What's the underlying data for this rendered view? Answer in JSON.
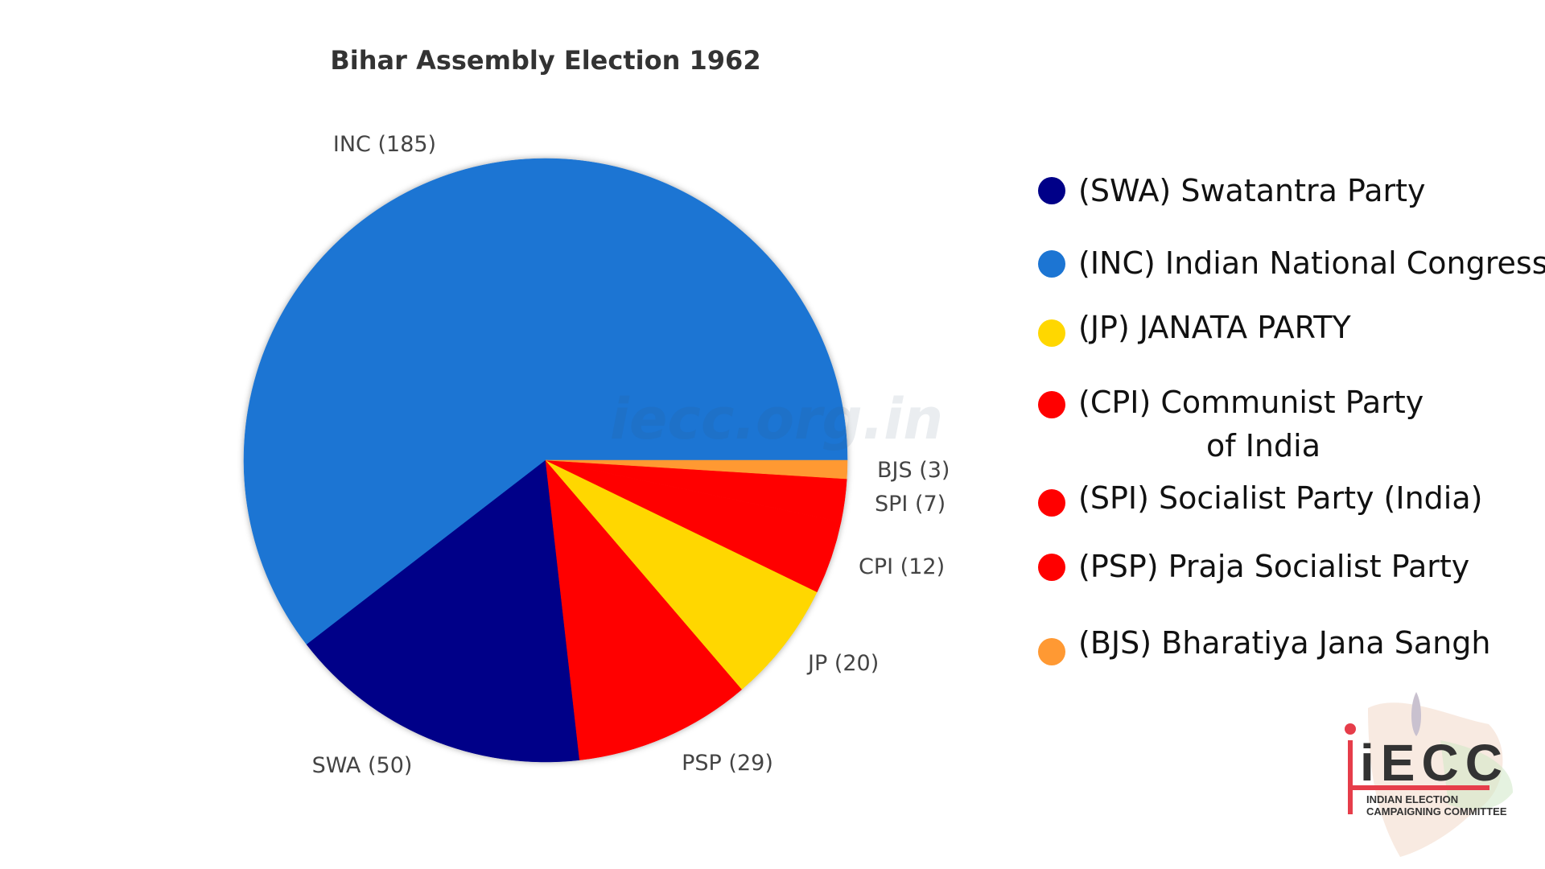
{
  "chart_data": {
    "type": "pie",
    "title": "Bihar Assembly Election 1962",
    "slices": [
      {
        "key": "INC",
        "value": 185,
        "label": "INC (185)",
        "color": "#1c75d3"
      },
      {
        "key": "SWA",
        "value": 50,
        "label": "SWA (50)",
        "color": "#000088"
      },
      {
        "key": "PSP",
        "value": 29,
        "label": "PSP (29)",
        "color": "#ff0000"
      },
      {
        "key": "JP",
        "value": 20,
        "label": "JP (20)",
        "color": "#ffd700"
      },
      {
        "key": "CPI",
        "value": 12,
        "label": "CPI (12)",
        "color": "#ff0000"
      },
      {
        "key": "SPI",
        "value": 7,
        "label": "SPI (7)",
        "color": "#ff0000"
      },
      {
        "key": "BJS",
        "value": 3,
        "label": "BJS (3)",
        "color": "#ff9933"
      }
    ],
    "legend": [
      {
        "lines": [
          "(SWA) Swatantra Party"
        ],
        "color": "#000088"
      },
      {
        "lines": [
          "(INC) Indian National Congress"
        ],
        "color": "#1c75d3"
      },
      {
        "lines": [
          "(JP) JANATA PARTY"
        ],
        "color": "#ffd700"
      },
      {
        "lines": [
          "(CPI) Communist Party",
          "of India"
        ],
        "color": "#ff0000"
      },
      {
        "lines": [
          "(SPI) Socialist Party (India)"
        ],
        "color": "#ff0000"
      },
      {
        "lines": [
          "(PSP) Praja Socialist Party"
        ],
        "color": "#ff0000"
      },
      {
        "lines": [
          "(BJS) Bharatiya Jana Sangh"
        ],
        "color": "#ff9933"
      }
    ],
    "legend_position": "right"
  },
  "watermark": "iecc.org.in",
  "logo": {
    "letters": "iECC",
    "line1": "INDIAN ELECTION",
    "line2": "CAMPAIGNING COMMITTEE"
  }
}
